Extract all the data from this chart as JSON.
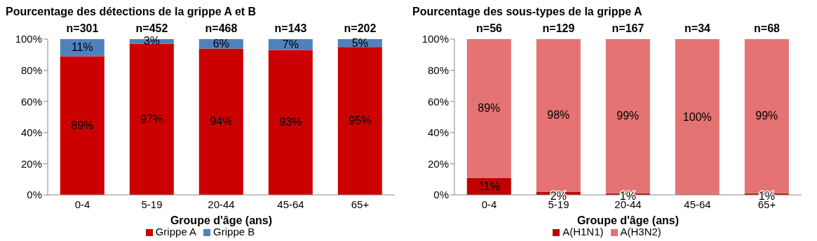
{
  "chart_data": [
    {
      "type": "bar",
      "title": "Pourcentage des détections de la grippe A et B",
      "xlabel": "Groupe d'âge (ans)",
      "categories": [
        "0-4",
        "5-19",
        "20-44",
        "45-64",
        "65+"
      ],
      "stacked": true,
      "series": [
        {
          "name": "Grippe A",
          "color": "#cc0000",
          "values": [
            89,
            97,
            94,
            93,
            95
          ],
          "value_labels": [
            "89%",
            "97%",
            "94%",
            "93%",
            "95%"
          ]
        },
        {
          "name": "Grippe B",
          "color": "#4f81bd",
          "values": [
            11,
            3,
            6,
            7,
            5
          ],
          "value_labels": [
            "11%",
            "3%",
            "6%",
            "7%",
            "5%"
          ]
        }
      ],
      "ylim": [
        0,
        100
      ],
      "yticks": [
        {
          "value": 0,
          "label": "0%"
        },
        {
          "value": 20,
          "label": "20%"
        },
        {
          "value": 40,
          "label": "40%"
        },
        {
          "value": 60,
          "label": "60%"
        },
        {
          "value": 80,
          "label": "80%"
        },
        {
          "value": 100,
          "label": "100%"
        }
      ],
      "annotations": [
        "n=301",
        "n=452",
        "n=468",
        "n=143",
        "n=202"
      ],
      "legend": "bottom",
      "grid": false
    },
    {
      "type": "bar",
      "title": "Pourcentage des sous-types de la grippe A",
      "xlabel": "Groupe d'âge (ans)",
      "categories": [
        "0-4",
        "5-19",
        "20-44",
        "45-64",
        "65+"
      ],
      "stacked": true,
      "series": [
        {
          "name": "A(H1N1)",
          "color": "#c00000",
          "values": [
            11,
            2,
            1,
            0,
            1
          ],
          "value_labels": [
            "11%",
            "2%",
            "1%",
            null,
            "1%"
          ]
        },
        {
          "name": "A(H3N2)",
          "color": "#e57373",
          "values": [
            89,
            98,
            99,
            100,
            99
          ],
          "value_labels": [
            "89%",
            "98%",
            "99%",
            "100%",
            "99%"
          ]
        }
      ],
      "ylim": [
        0,
        100
      ],
      "yticks": [
        {
          "value": 0,
          "label": "0%"
        },
        {
          "value": 20,
          "label": "20%"
        },
        {
          "value": 40,
          "label": "40%"
        },
        {
          "value": 60,
          "label": "60%"
        },
        {
          "value": 80,
          "label": "80%"
        },
        {
          "value": 100,
          "label": "100%"
        }
      ],
      "annotations": [
        "n=56",
        "n=129",
        "n=167",
        "n=34",
        "n=68"
      ],
      "legend": "bottom",
      "grid": false
    }
  ]
}
